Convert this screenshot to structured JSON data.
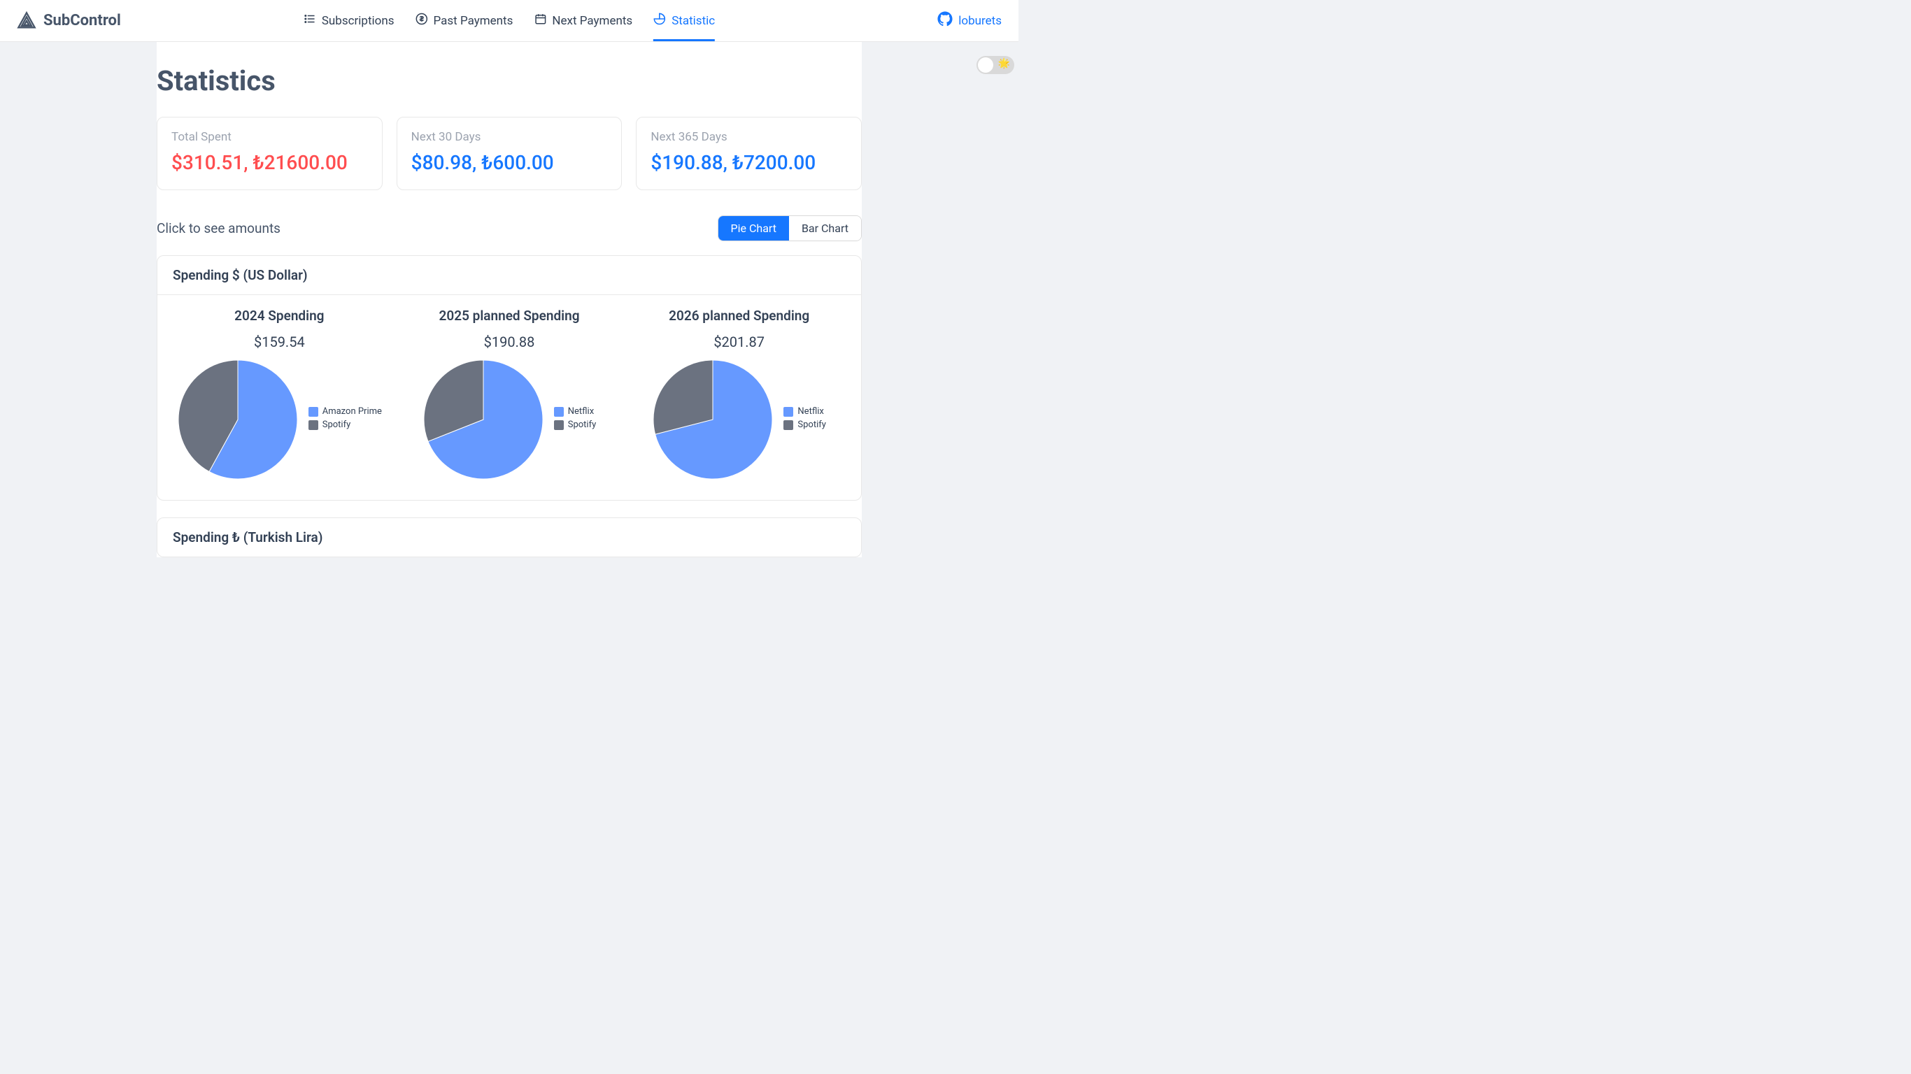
{
  "brand": {
    "name": "SubControl",
    "logo_stroke": "#475569"
  },
  "nav": {
    "items": [
      {
        "label": "Subscriptions",
        "icon": "list"
      },
      {
        "label": "Past Payments",
        "icon": "dollar"
      },
      {
        "label": "Next Payments",
        "icon": "calendar"
      },
      {
        "label": "Statistic",
        "icon": "piechart",
        "active": true
      }
    ]
  },
  "user": {
    "label": "loburets",
    "icon": "github",
    "color": "#1677ff"
  },
  "page": {
    "title": "Statistics",
    "hint": "Click to see amounts",
    "chart_toggle": {
      "pie": "Pie Chart",
      "bar": "Bar Chart",
      "active": "pie"
    }
  },
  "summary_cards": [
    {
      "label": "Total Spent",
      "value": "$310.51, ₺21600.00",
      "color": "red"
    },
    {
      "label": "Next 30 Days",
      "value": "$80.98, ₺600.00",
      "color": "blue"
    },
    {
      "label": "Next 365 Days",
      "value": "$190.88, ₺7200.00",
      "color": "blue"
    }
  ],
  "sections": [
    {
      "title": "Spending $ (US Dollar)",
      "charts": [
        {
          "title": "2024 Spending",
          "total": "$159.54",
          "type": "pie",
          "radius": 85,
          "stroke": "#ffffff",
          "stroke_width": 1,
          "series": [
            {
              "label": "Amazon Prime",
              "value": 58,
              "color": "#6699ff"
            },
            {
              "label": "Spotify",
              "value": 42,
              "color": "#6b7280"
            }
          ]
        },
        {
          "title": "2025 planned Spending",
          "total": "$190.88",
          "type": "pie",
          "radius": 85,
          "stroke": "#ffffff",
          "stroke_width": 1,
          "series": [
            {
              "label": "Netflix",
              "value": 69,
              "color": "#6699ff"
            },
            {
              "label": "Spotify",
              "value": 31,
              "color": "#6b7280"
            }
          ]
        },
        {
          "title": "2026 planned Spending",
          "total": "$201.87",
          "type": "pie",
          "radius": 85,
          "stroke": "#ffffff",
          "stroke_width": 1,
          "series": [
            {
              "label": "Netflix",
              "value": 71,
              "color": "#6699ff"
            },
            {
              "label": "Spotify",
              "value": 29,
              "color": "#6b7280"
            }
          ]
        }
      ]
    },
    {
      "title": "Spending ₺ (Turkish Lira)"
    }
  ],
  "theme": {
    "bg": "#f0f2f5",
    "card_border": "#e8e8e8",
    "text": "#334155",
    "muted": "#9ca3af",
    "accent": "#1677ff",
    "danger": "#ff4d4f"
  }
}
